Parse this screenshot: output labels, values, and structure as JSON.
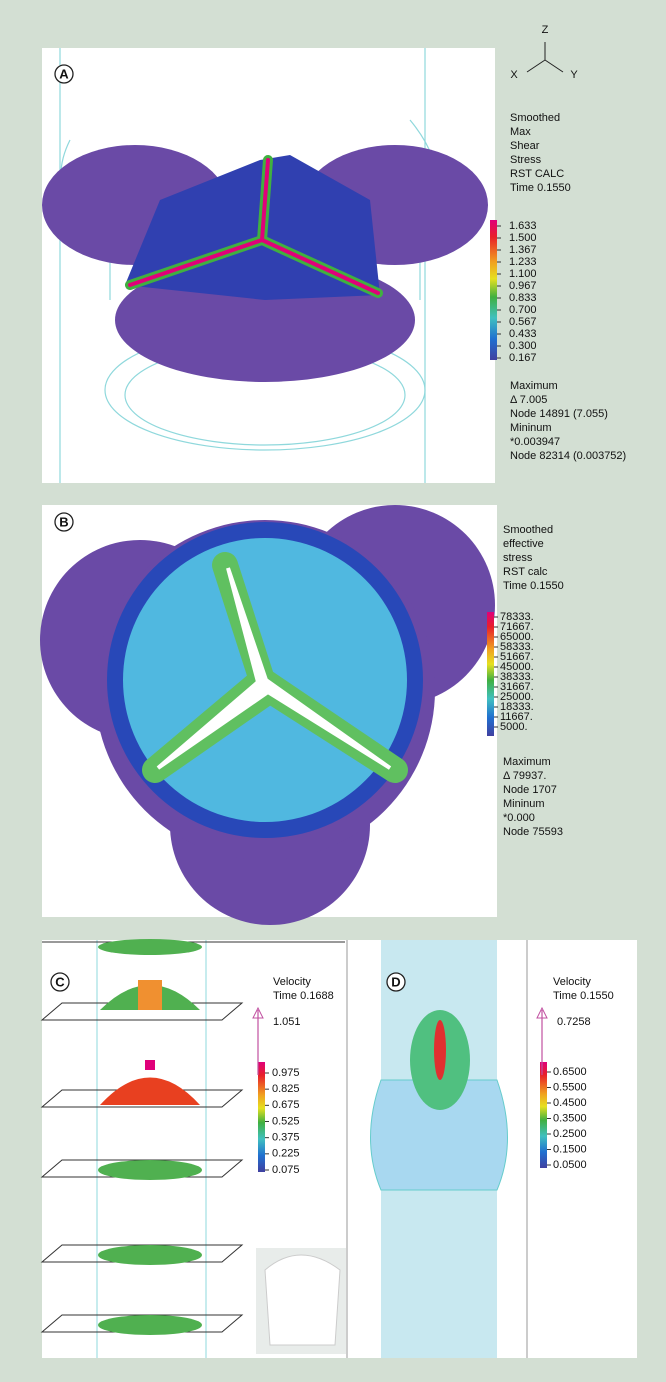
{
  "panels": [
    {
      "label": "A",
      "axes": [
        "Z",
        "X",
        "Y"
      ],
      "heading": [
        "Smoothed",
        "Max",
        "Shear",
        "Stress",
        "RST CALC",
        "Time 0.1550"
      ],
      "legend": [
        "1.633",
        "1.500",
        "1.367",
        "1.233",
        "1.100",
        "0.967",
        "0.833",
        "0.700",
        "0.567",
        "0.433",
        "0.300",
        "0.167"
      ],
      "stats": [
        "Maximum",
        "Δ 7.005",
        "Node 14891 (7.055)",
        "Mininum",
        "*0.003947",
        "Node 82314 (0.003752)"
      ]
    },
    {
      "label": "B",
      "heading": [
        "Smoothed",
        "effective",
        "stress",
        "RST calc",
        "Time 0.1550"
      ],
      "legend": [
        "78333.",
        "71667.",
        "65000.",
        "58333.",
        "51667.",
        "45000.",
        "38333.",
        "31667.",
        "25000.",
        "18333.",
        "11667.",
        "5000."
      ],
      "stats": [
        "Maximum",
        "Δ 79937.",
        "Node 1707",
        "Mininum",
        "*0.000",
        "Node 75593"
      ]
    },
    {
      "label": "C",
      "heading": [
        "Velocity",
        "Time 0.1688"
      ],
      "arrow": "1.051",
      "legend": [
        "0.975",
        "0.825",
        "0.675",
        "0.525",
        "0.375",
        "0.225",
        "0.075"
      ]
    },
    {
      "label": "D",
      "heading": [
        "Velocity",
        "Time 0.1550"
      ],
      "arrow": "0.7258",
      "legend": [
        "0.6500",
        "0.5500",
        "0.4500",
        "0.3500",
        "0.2500",
        "0.1500",
        "0.0500"
      ]
    }
  ]
}
